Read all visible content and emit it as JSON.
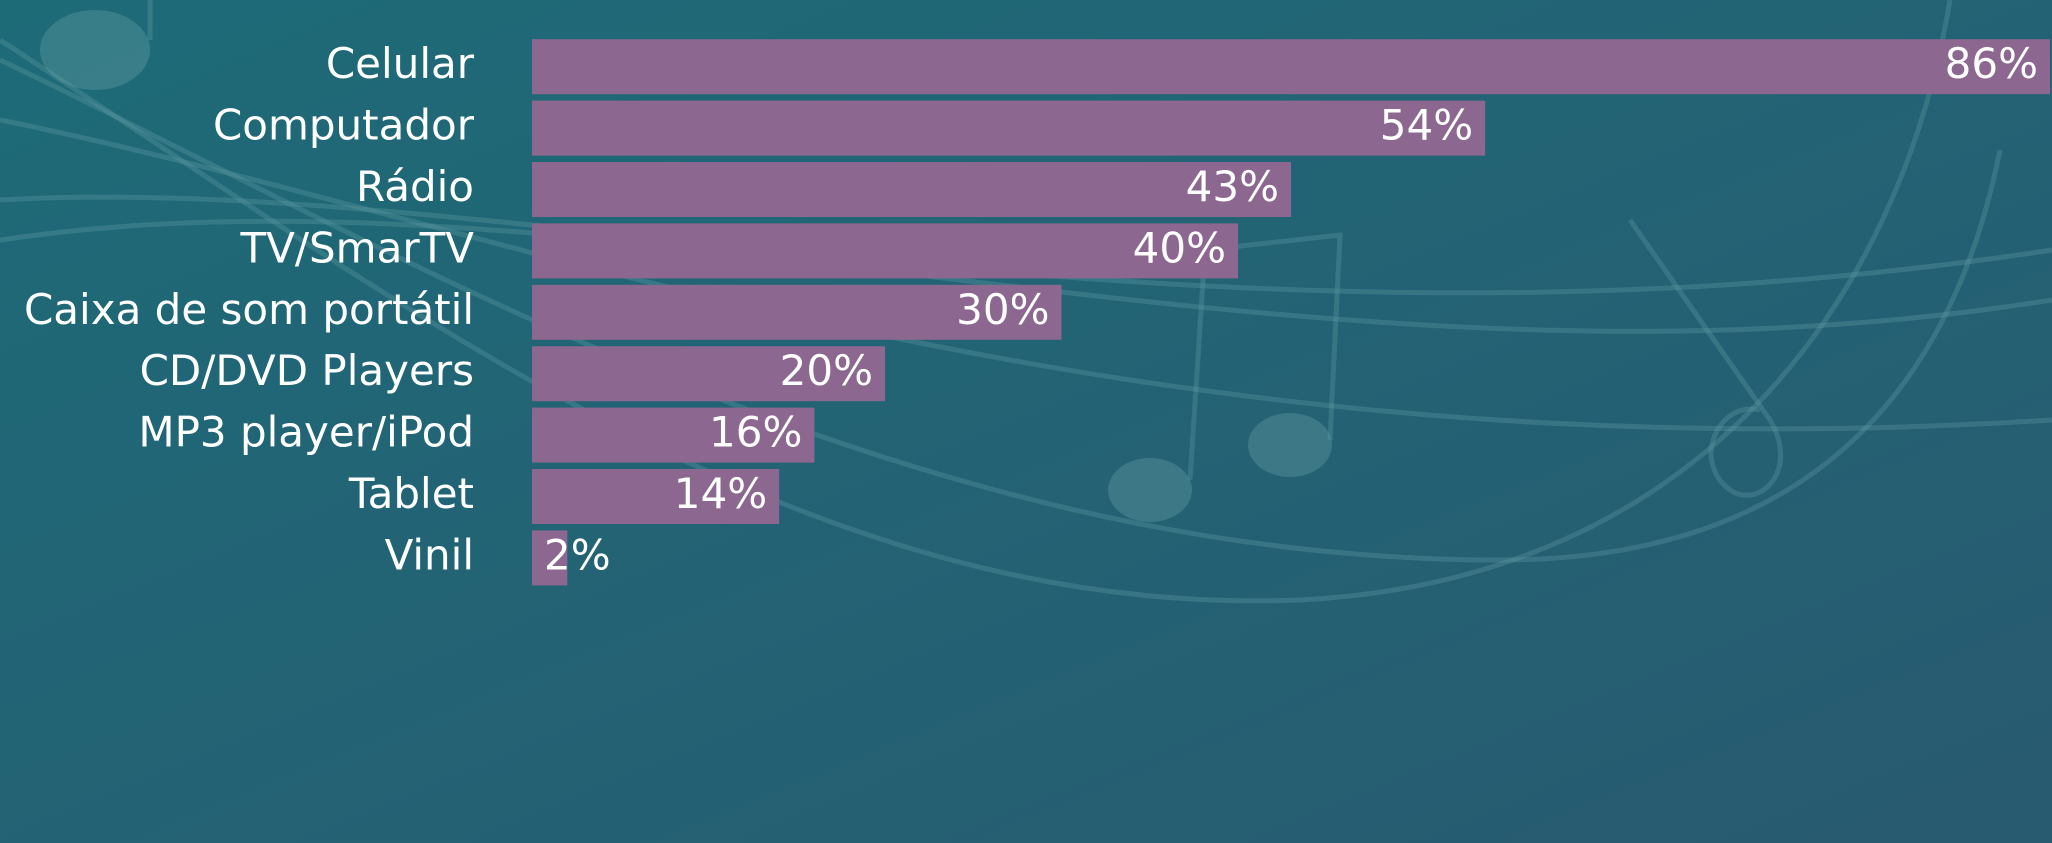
{
  "chart_data": {
    "type": "bar",
    "orientation": "horizontal",
    "categories": [
      "Celular",
      "Computador",
      "Rádio",
      "TV/SmarTV",
      "Caixa de som portátil",
      "CD/DVD Players",
      "MP3 player/iPod",
      "Tablet",
      "Vinil"
    ],
    "values": [
      86,
      54,
      43,
      40,
      30,
      20,
      16,
      14,
      2
    ],
    "value_labels": [
      "86%",
      "54%",
      "43%",
      "40%",
      "30%",
      "20%",
      "16%",
      "14%",
      "2%"
    ],
    "color": "#8c6790"
  }
}
